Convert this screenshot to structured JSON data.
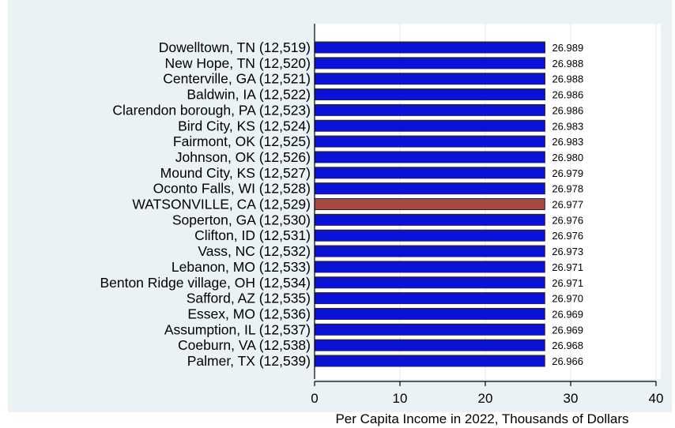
{
  "chart_data": {
    "type": "bar",
    "orientation": "horizontal",
    "title": "",
    "xlabel": "Per Capita Income in 2022, Thousands of Dollars",
    "xlim": [
      0,
      42
    ],
    "xticks": [
      0,
      10,
      20,
      30,
      40
    ],
    "grid": true,
    "colors": {
      "default": "#0a12d8",
      "highlight": "#a84a44",
      "bar_outline": "#262626",
      "background": "#eaf2f3"
    },
    "categories": [
      "Dowelltown, TN (12,519)",
      "New Hope, TN (12,520)",
      "Centerville, GA (12,521)",
      "Baldwin, IA (12,522)",
      "Clarendon borough, PA (12,523)",
      "Bird City, KS (12,524)",
      "Fairmont, OK (12,525)",
      "Johnson, OK (12,526)",
      "Mound City, KS (12,527)",
      "Oconto Falls, WI (12,528)",
      "WATSONVILLE, CA (12,529)",
      "Soperton, GA (12,530)",
      "Clifton, ID (12,531)",
      "Vass, NC (12,532)",
      "Lebanon, MO (12,533)",
      "Benton Ridge village, OH (12,534)",
      "Safford, AZ (12,535)",
      "Essex, MO (12,536)",
      "Assumption, IL (12,537)",
      "Coeburn, VA (12,538)",
      "Palmer, TX (12,539)"
    ],
    "values": [
      26.989,
      26.988,
      26.988,
      26.986,
      26.986,
      26.983,
      26.983,
      26.98,
      26.979,
      26.978,
      26.977,
      26.976,
      26.976,
      26.973,
      26.971,
      26.971,
      26.97,
      26.969,
      26.969,
      26.968,
      26.966
    ],
    "value_labels": [
      "26.989",
      "26.988",
      "26.988",
      "26.986",
      "26.986",
      "26.983",
      "26.983",
      "26.980",
      "26.979",
      "26.978",
      "26.977",
      "26.976",
      "26.976",
      "26.973",
      "26.971",
      "26.971",
      "26.970",
      "26.969",
      "26.969",
      "26.968",
      "26.966"
    ],
    "highlight_index": 10
  }
}
